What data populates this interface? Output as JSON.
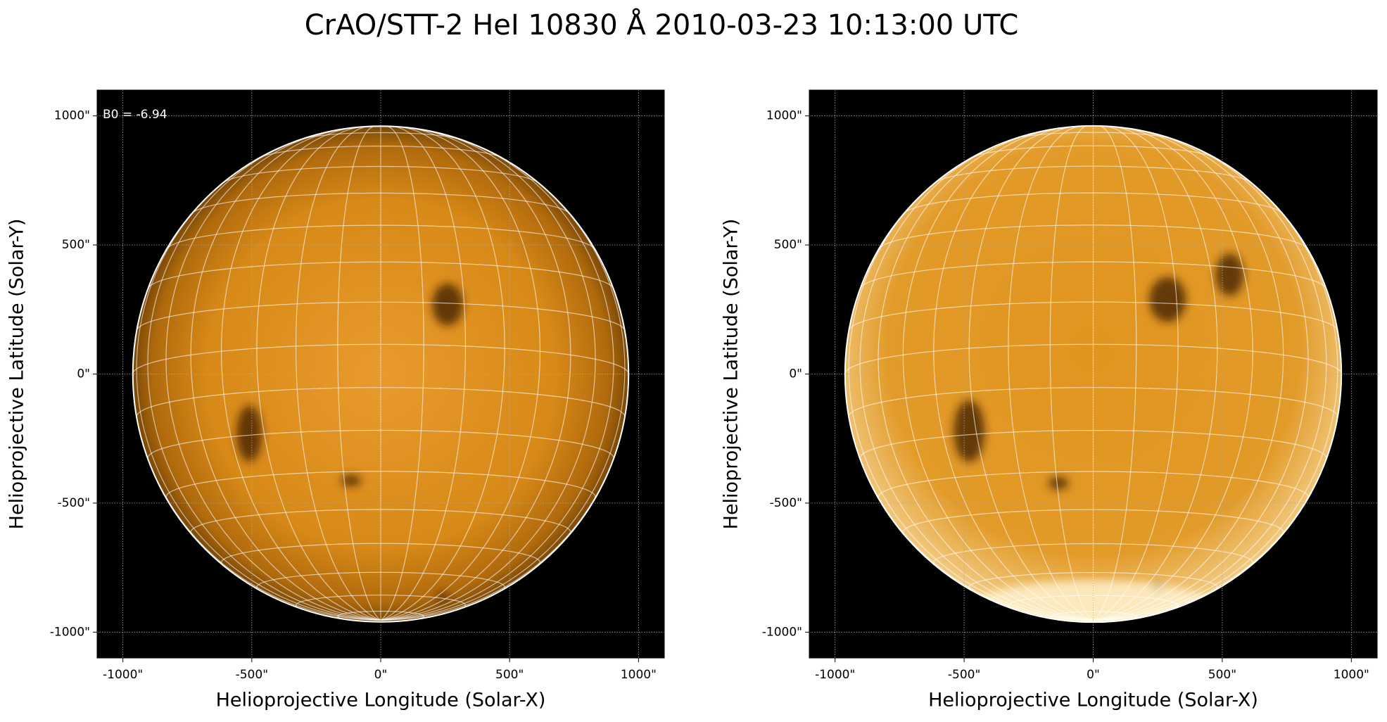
{
  "title": "CrAO/STT-2 HeI 10830 Å 2010-03-23 10:13:00 UTC",
  "chart_data": [
    {
      "type": "image",
      "annotation": "B0 = -6.94",
      "x_label": "Helioprojective Longitude (Solar-X)",
      "y_label": "Helioprojective Latitude (Solar-Y)",
      "xlim": [
        -1100,
        1100
      ],
      "ylim": [
        -1100,
        1100
      ],
      "xticks": [
        {
          "value": -1000,
          "label": "-1000\""
        },
        {
          "value": -500,
          "label": "-500\""
        },
        {
          "value": 0,
          "label": "0\""
        },
        {
          "value": 500,
          "label": "500\""
        },
        {
          "value": 1000,
          "label": "1000\""
        }
      ],
      "yticks": [
        {
          "value": -1000,
          "label": "-1000\""
        },
        {
          "value": -500,
          "label": "-500\""
        },
        {
          "value": 0,
          "label": "0\""
        },
        {
          "value": 500,
          "label": "500\""
        },
        {
          "value": 1000,
          "label": "1000\""
        }
      ],
      "grid": true
    },
    {
      "type": "image",
      "x_label": "Helioprojective Longitude (Solar-X)",
      "y_label": "Helioprojective Latitude (Solar-Y)",
      "xlim": [
        -1100,
        1100
      ],
      "ylim": [
        -1100,
        1100
      ],
      "xticks": [
        {
          "value": -1000,
          "label": "-1000\""
        },
        {
          "value": -500,
          "label": "-500\""
        },
        {
          "value": 0,
          "label": "0\""
        },
        {
          "value": 500,
          "label": "500\""
        },
        {
          "value": 1000,
          "label": "1000\""
        }
      ],
      "yticks": [
        {
          "value": -1000,
          "label": "-1000\""
        },
        {
          "value": -500,
          "label": "-500\""
        },
        {
          "value": 0,
          "label": "0\""
        },
        {
          "value": 500,
          "label": "500\""
        },
        {
          "value": 1000,
          "label": "1000\""
        }
      ],
      "grid": true
    }
  ]
}
